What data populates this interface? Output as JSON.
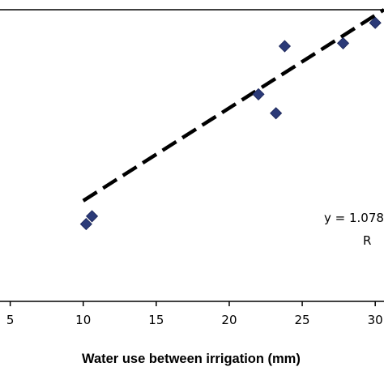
{
  "chart_data": {
    "type": "scatter",
    "title": "",
    "xlabel": "Water use between irrigation (mm)",
    "ylabel": "",
    "xlim": [
      4.3,
      30.6
    ],
    "ylim": [
      0,
      1
    ],
    "x_ticks": [
      "5",
      "10",
      "15",
      "20",
      "25",
      "30"
    ],
    "grid": false,
    "series": [
      {
        "points": [
          {
            "x": 10.2,
            "y": 0.265
          },
          {
            "x": 10.6,
            "y": 0.292
          },
          {
            "x": 22.0,
            "y": 0.71
          },
          {
            "x": 23.2,
            "y": 0.645
          },
          {
            "x": 23.8,
            "y": 0.875
          },
          {
            "x": 27.8,
            "y": 0.885
          },
          {
            "x": 30.0,
            "y": 0.955
          }
        ],
        "marker": "diamond",
        "color": "#2b3a78"
      }
    ],
    "trendline": {
      "style": "dashed",
      "color": "#000000",
      "from": {
        "x": 10.0,
        "y": 0.345
      },
      "to": {
        "x": 30.6,
        "y": 1.0
      }
    },
    "annotations": [
      "y = 1.078",
      "R"
    ]
  }
}
